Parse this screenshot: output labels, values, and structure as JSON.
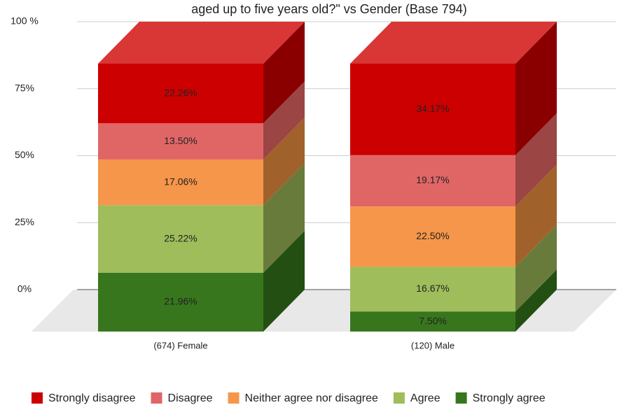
{
  "chart_data": {
    "type": "bar",
    "stacked": true,
    "title": "aged up to five years old?\" vs Gender (Base 794)",
    "categories": [
      "(674) Female",
      "(120) Male"
    ],
    "series": [
      {
        "name": "Strongly disagree",
        "color": "#cc0000",
        "side_color": "#8a0000",
        "values": [
          22.26,
          34.17
        ],
        "value_labels": [
          "22.26%",
          "34.17%"
        ]
      },
      {
        "name": "Disagree",
        "color": "#e06666",
        "side_color": "#9b4545",
        "values": [
          13.5,
          19.17
        ],
        "value_labels": [
          "13.50%",
          "19.17%"
        ]
      },
      {
        "name": "Neither agree nor disagree",
        "color": "#f6964a",
        "side_color": "#a0622a",
        "values": [
          17.06,
          22.5
        ],
        "value_labels": [
          "17.06%",
          "22.50%"
        ]
      },
      {
        "name": "Agree",
        "color": "#9fbd5b",
        "side_color": "#687b3b",
        "values": [
          25.22,
          16.67
        ],
        "value_labels": [
          "25.22%",
          "16.67%"
        ]
      },
      {
        "name": "Strongly agree",
        "color": "#38761d",
        "side_color": "#244f13",
        "values": [
          21.96,
          7.5
        ],
        "value_labels": [
          "21.96%",
          "7.50%"
        ]
      }
    ],
    "top_color": "#d93636",
    "ylim": [
      0,
      100
    ],
    "yticks": [
      {
        "value": 0,
        "label": "0%"
      },
      {
        "value": 25,
        "label": "25%"
      },
      {
        "value": 50,
        "label": "50%"
      },
      {
        "value": 75,
        "label": "75%"
      },
      {
        "value": 100,
        "label": "100 %"
      }
    ],
    "grid": true
  }
}
